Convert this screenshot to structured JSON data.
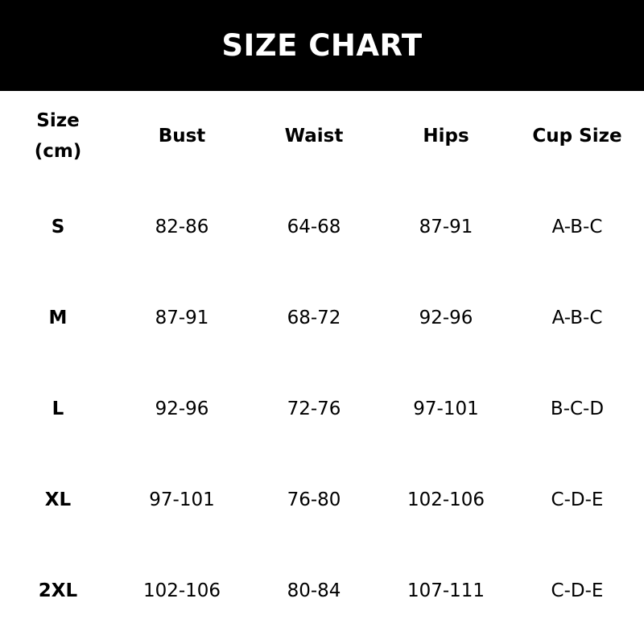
{
  "title": "SIZE CHART",
  "headers": [
    "Size\n(cm)",
    "Bust",
    "Waist",
    "Hips",
    "Cup Size"
  ],
  "header_size_line1": "Size",
  "header_size_line2": "(cm)",
  "rows": [
    [
      "S",
      "82-86",
      "64-68",
      "87-91",
      "A-B-C"
    ],
    [
      "M",
      "87-91",
      "68-72",
      "92-96",
      "A-B-C"
    ],
    [
      "L",
      "92-96",
      "72-76",
      "97-101",
      "B-C-D"
    ],
    [
      "XL",
      "97-101",
      "76-80",
      "102-106",
      "C-D-E"
    ],
    [
      "2XL",
      "102-106",
      "80-84",
      "107-111",
      "C-D-E"
    ]
  ]
}
